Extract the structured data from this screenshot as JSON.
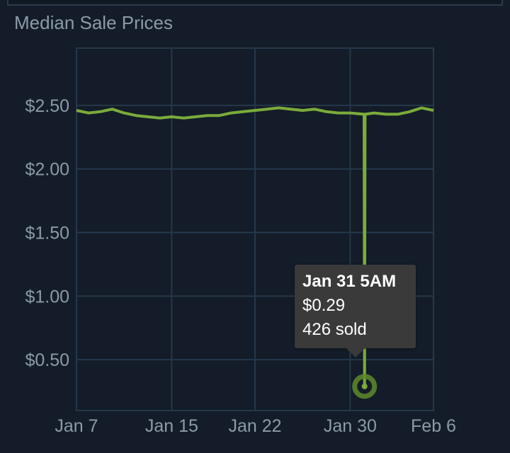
{
  "title": "Median Sale Prices",
  "colors": {
    "line": "#7cab3a",
    "grid": "#26374a",
    "background": "#131c28",
    "text": "#8c9aa8"
  },
  "tooltip": {
    "date": "Jan 31 5AM",
    "price": "$0.29",
    "sold": "426 sold"
  },
  "chart_data": {
    "type": "line",
    "title": "Median Sale Prices",
    "xlabel": "",
    "ylabel": "",
    "x_ticks": [
      "Jan 7",
      "Jan 15",
      "Jan 22",
      "Jan 30",
      "Feb 6"
    ],
    "y_ticks": [
      "$0.50",
      "$1.00",
      "$1.50",
      "$2.00",
      "$2.50"
    ],
    "x_range": [
      "Jan 7",
      "Feb 6"
    ],
    "ylim": [
      0.1,
      2.95
    ],
    "grid": true,
    "series": [
      {
        "x": [
          "Jan 7",
          "Jan 8",
          "Jan 9",
          "Jan 10",
          "Jan 11",
          "Jan 12",
          "Jan 13",
          "Jan 14",
          "Jan 15",
          "Jan 16",
          "Jan 17",
          "Jan 18",
          "Jan 19",
          "Jan 20",
          "Jan 21",
          "Jan 22",
          "Jan 23",
          "Jan 24",
          "Jan 25",
          "Jan 26",
          "Jan 27",
          "Jan 28",
          "Jan 29",
          "Jan 30",
          "Jan 31 4AM",
          "Jan 31 5AM",
          "Jan 31 6AM",
          "Feb 1",
          "Feb 2",
          "Feb 3",
          "Feb 4",
          "Feb 5",
          "Feb 6"
        ],
        "y": [
          2.46,
          2.44,
          2.45,
          2.47,
          2.44,
          2.42,
          2.41,
          2.4,
          2.41,
          2.4,
          2.41,
          2.42,
          2.42,
          2.44,
          2.45,
          2.46,
          2.47,
          2.48,
          2.47,
          2.46,
          2.47,
          2.45,
          2.44,
          2.44,
          2.43,
          0.29,
          2.43,
          2.44,
          2.43,
          2.43,
          2.45,
          2.48,
          2.46
        ]
      }
    ],
    "tooltip_point": {
      "x": "Jan 31 5AM",
      "y": 0.29,
      "sold": 426
    }
  }
}
